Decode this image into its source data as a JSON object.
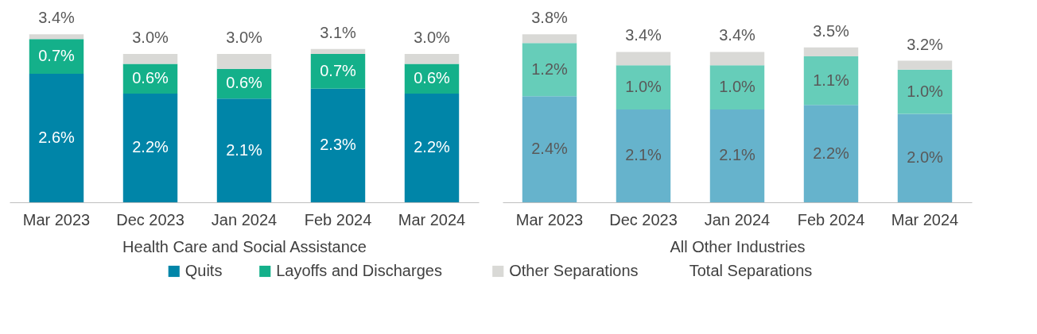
{
  "chart_data": [
    {
      "type": "bar",
      "stacked": true,
      "xlabel": "Health Care and Social Assistance",
      "categories": [
        "Mar 2023",
        "Dec 2023",
        "Jan 2024",
        "Feb 2024",
        "Mar 2024"
      ],
      "tick_labels": "x",
      "grid": false,
      "legend": "bottom",
      "series": [
        {
          "name": "Quits",
          "color": "#0085a8",
          "values": [
            2.6,
            2.2,
            2.1,
            2.3,
            2.2
          ],
          "value_labels": [
            "2.6%",
            "2.2%",
            "2.1%",
            "2.3%",
            "2.2%"
          ]
        },
        {
          "name": "Layoffs and Discharges",
          "color": "#14b08a",
          "values": [
            0.7,
            0.6,
            0.6,
            0.7,
            0.6
          ],
          "value_labels": [
            "0.7%",
            "0.6%",
            "0.6%",
            "0.7%",
            "0.6%"
          ]
        },
        {
          "name": "Other Separations",
          "color": "#d9d9d6",
          "values": [
            0.1,
            0.2,
            0.3,
            0.1,
            0.2
          ]
        }
      ],
      "totals": [
        "3.4%",
        "3.0%",
        "3.0%",
        "3.1%",
        "3.0%"
      ],
      "annotations": [
        "Total Separations"
      ]
    },
    {
      "type": "bar",
      "stacked": true,
      "xlabel": "All Other Industries",
      "categories": [
        "Mar 2023",
        "Dec 2023",
        "Jan 2024",
        "Feb 2024",
        "Mar 2024"
      ],
      "tick_labels": "x",
      "grid": false,
      "series": [
        {
          "color": "#66b3cc",
          "values": [
            2.4,
            2.1,
            2.1,
            2.2,
            2.0
          ],
          "value_labels": [
            "2.4%",
            "2.1%",
            "2.1%",
            "2.2%",
            "2.0%"
          ]
        },
        {
          "color": "#66cdb9",
          "values": [
            1.2,
            1.0,
            1.0,
            1.1,
            1.0
          ],
          "value_labels": [
            "1.2%",
            "1.0%",
            "1.0%",
            "1.1%",
            "1.0%"
          ]
        },
        {
          "color": "#d9d9d6",
          "values": [
            0.2,
            0.3,
            0.3,
            0.2,
            0.2
          ]
        }
      ],
      "totals": [
        "3.8%",
        "3.4%",
        "3.4%",
        "3.5%",
        "3.2%"
      ]
    }
  ]
}
